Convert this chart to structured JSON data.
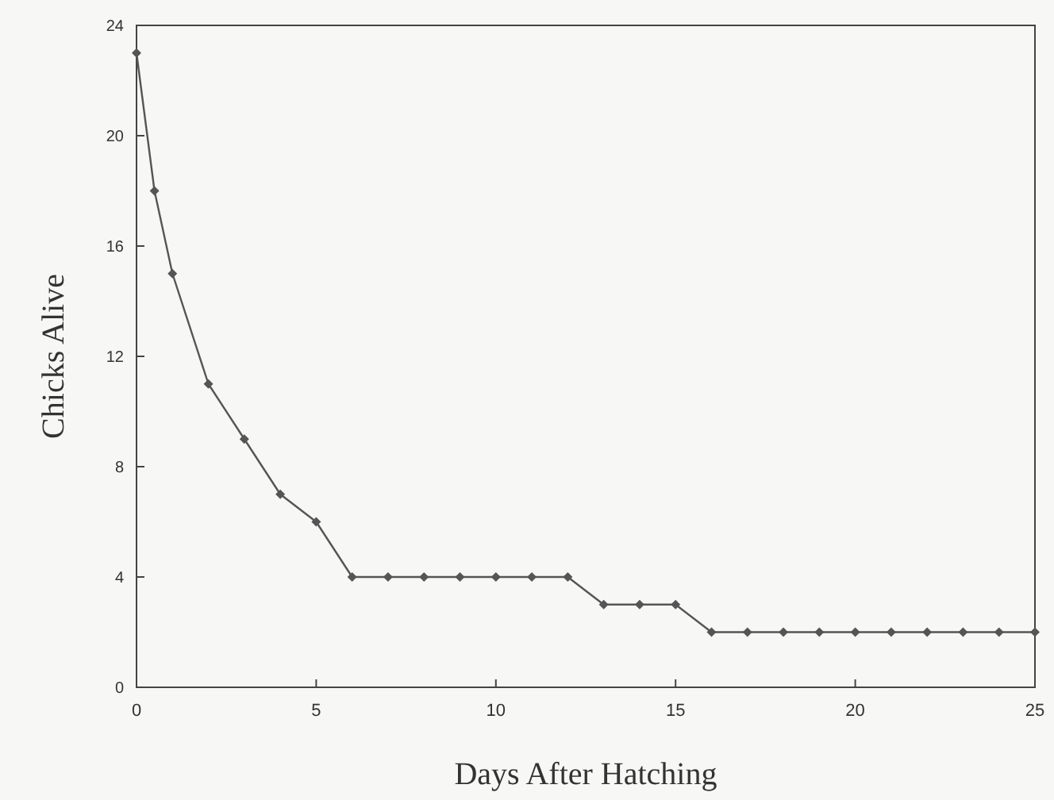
{
  "chart_data": {
    "type": "line",
    "xlabel": "Days After Hatching",
    "ylabel": "Chicks Alive",
    "x": [
      0,
      0.5,
      1,
      2,
      3,
      4,
      5,
      6,
      7,
      8,
      9,
      10,
      11,
      12,
      13,
      14,
      15,
      16,
      17,
      18,
      19,
      20,
      21,
      22,
      23,
      24,
      25
    ],
    "values": [
      23,
      18,
      15,
      11,
      9,
      7,
      6,
      4,
      4,
      4,
      4,
      4,
      4,
      4,
      3,
      3,
      3,
      2,
      2,
      2,
      2,
      2,
      2,
      2,
      2,
      2,
      2
    ],
    "color": "#555555",
    "marker": "diamond",
    "line_style": "solid",
    "xlim": [
      0,
      25
    ],
    "xticks": [
      0,
      5,
      10,
      15,
      20,
      25
    ],
    "ylim": [
      0,
      24
    ],
    "yticks": [
      0,
      4,
      8,
      12,
      16,
      20,
      24
    ],
    "grid": false
  }
}
